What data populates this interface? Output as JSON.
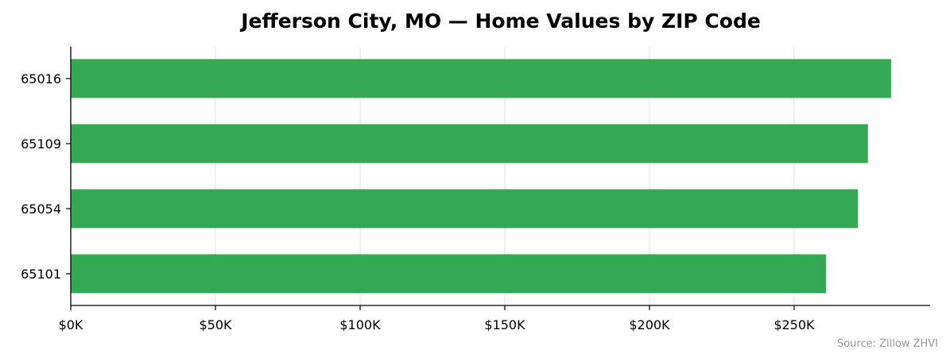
{
  "chart_data": {
    "type": "bar",
    "orientation": "horizontal",
    "title": "Jefferson City, MO — Home Values by ZIP Code",
    "xlabel": "",
    "ylabel": "",
    "categories": [
      "65016",
      "65109",
      "65054",
      "65101"
    ],
    "values": [
      283500,
      275500,
      272000,
      261000
    ],
    "xlim": [
      0,
      297000
    ],
    "xticks": [
      0,
      50000,
      100000,
      150000,
      200000,
      250000
    ],
    "xtick_labels": [
      "$0K",
      "$50K",
      "$100K",
      "$150K",
      "$200K",
      "$250K"
    ],
    "grid": "vertical",
    "legend": "none",
    "bar_color": "#34a853",
    "grid_color": "#e6e6e6",
    "source": "Source: Zillow ZHVI"
  }
}
